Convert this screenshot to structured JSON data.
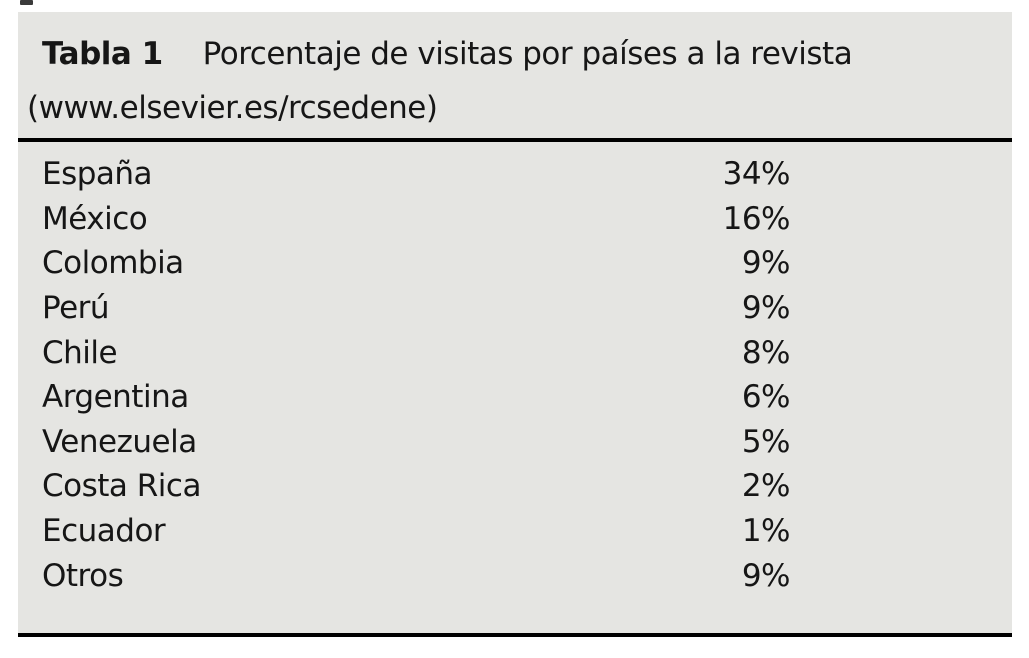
{
  "table": {
    "label": "Tabla 1",
    "title": "Porcentaje de visitas por países a la revista",
    "subtitle": "(www.elsevier.es/rcsedene)",
    "rows": [
      {
        "country": "España",
        "percent": "34%"
      },
      {
        "country": "México",
        "percent": "16%"
      },
      {
        "country": "Colombia",
        "percent": "9%"
      },
      {
        "country": "Perú",
        "percent": "9%"
      },
      {
        "country": "Chile",
        "percent": "8%"
      },
      {
        "country": "Argentina",
        "percent": "6%"
      },
      {
        "country": "Venezuela",
        "percent": "5%"
      },
      {
        "country": "Costa Rica",
        "percent": "2%"
      },
      {
        "country": "Ecuador",
        "percent": "1%"
      },
      {
        "country": "Otros",
        "percent": "9%"
      }
    ],
    "colors": {
      "caption_background": "#e5e5e2",
      "rule": "#000000",
      "text": "#161616"
    }
  },
  "chart_data": {
    "type": "table",
    "title": "Tabla 1 Porcentaje de visitas por países a la revista (www.elsevier.es/rcsedene)",
    "categories": [
      "España",
      "México",
      "Colombia",
      "Perú",
      "Chile",
      "Argentina",
      "Venezuela",
      "Costa Rica",
      "Ecuador",
      "Otros"
    ],
    "values": [
      34,
      16,
      9,
      9,
      8,
      6,
      5,
      2,
      1,
      9
    ],
    "value_unit": "%"
  }
}
